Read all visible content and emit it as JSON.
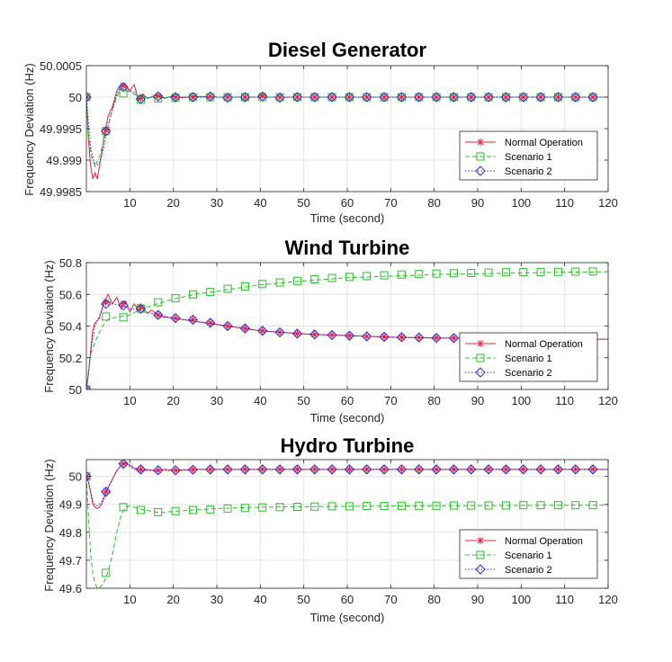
{
  "figure": {
    "background": "#ffffff"
  },
  "colors": {
    "normal": "#e8213a",
    "scenario1": "#22c422",
    "scenario2": "#2a2ae0",
    "grid": "#e3e3e3",
    "axis": "#262626"
  },
  "chart_data": [
    {
      "type": "line",
      "title": "Diesel Generator",
      "xlabel": "Time (second)",
      "ylabel": "Frequency Deviation (Hz)",
      "xlim": [
        0,
        120
      ],
      "ylim": [
        49.9985,
        50.0005
      ],
      "xticks": [
        10,
        20,
        30,
        40,
        50,
        60,
        70,
        80,
        90,
        100,
        110,
        120
      ],
      "xtick_labels": [
        "10",
        "20",
        "30",
        "40",
        "50",
        "60",
        "70",
        "80",
        "90",
        "100",
        "110",
        "120"
      ],
      "yticks": [
        49.9985,
        49.999,
        49.9995,
        50,
        50.0005
      ],
      "ytick_labels": [
        "49.9985",
        "49.999",
        "49.9995",
        "50",
        "50.0005"
      ],
      "grid": true,
      "legend_position": "bottom-right",
      "series": [
        {
          "name": "Normal Operation",
          "x": [
            0,
            0.5,
            1,
            1.5,
            2,
            2.5,
            3,
            3.5,
            4,
            5,
            6,
            7,
            8,
            9,
            10,
            11,
            12,
            13,
            14,
            16,
            18,
            20,
            22,
            25,
            30,
            40,
            120
          ],
          "y": [
            50,
            49.9993,
            49.9989,
            49.9987,
            49.9988,
            49.9987,
            49.9989,
            49.9991,
            49.99935,
            49.9997,
            49.99985,
            50.0001,
            50.0002,
            50.00018,
            50.0001,
            50.0002,
            49.99995,
            50.00005,
            49.99998,
            50.00003,
            49.99998,
            50.00002,
            49.99999,
            50.00001,
            50.0,
            50.0,
            50.0
          ]
        },
        {
          "name": "Scenario 1",
          "x": [
            0,
            0.5,
            1,
            2,
            3,
            4,
            5,
            6,
            7,
            8,
            9,
            10,
            12,
            14,
            20,
            30,
            40,
            120
          ],
          "y": [
            50,
            49.9994,
            49.9991,
            49.9989,
            49.99905,
            49.9993,
            49.99955,
            49.9998,
            50.0,
            50.00015,
            50.0001,
            50.00008,
            50.00002,
            49.99999,
            50.0,
            50.0,
            50.0,
            50.0
          ]
        },
        {
          "name": "Scenario 2",
          "x": [
            0,
            1,
            2,
            3,
            4,
            5,
            6,
            7,
            8,
            9,
            10,
            11,
            12,
            13,
            14,
            16,
            18,
            20,
            22,
            25,
            30,
            40,
            120
          ],
          "y": [
            50,
            49.9992,
            49.9989,
            49.99895,
            49.9992,
            49.99955,
            49.9998,
            50.00005,
            50.00018,
            50.00015,
            50.0001,
            50.00008,
            49.99996,
            50.00004,
            49.99998,
            50.00002,
            49.99999,
            50.00001,
            50.0,
            50.0,
            50.0,
            50.0,
            50.0
          ]
        }
      ],
      "markers": {
        "x": [
          0,
          4.5,
          8.5,
          12.5,
          16.5,
          20.5,
          24.5,
          28.5,
          32.5,
          36.5,
          40.5,
          44.5,
          48.5,
          52.5,
          56.5,
          60.5,
          64.5,
          68.5,
          72.5,
          76.5,
          80.5,
          84.5,
          88.5,
          92.5,
          96.5,
          100.5,
          104.5,
          108.5,
          112.5,
          116.5
        ],
        "normal": [
          50,
          49.99948,
          50.00018,
          49.99998,
          50.00002,
          50.0,
          50.0,
          50.00001,
          50.0,
          50.0,
          50.00002,
          50.0,
          50.0,
          50.0,
          50.0,
          50.0,
          50.0,
          50.0,
          50.0,
          50.0,
          50.0,
          50.0,
          50.0,
          50.0,
          50.0,
          50.0,
          50.0,
          50.0,
          50.0,
          50.0
        ],
        "scenario1": [
          50,
          49.99946,
          50.00006,
          49.99996,
          49.99998,
          49.99999,
          50.0,
          50.0,
          50.0,
          50.0,
          50.0,
          50.0,
          50.0,
          50.0,
          50.0,
          50.0,
          50.0,
          50.0,
          50.0,
          50.0,
          50.0,
          50.0,
          50.0,
          50.0,
          50.0,
          50.0,
          50.0,
          50.0,
          50.0,
          50.0
        ],
        "scenario2": [
          50,
          49.99946,
          50.00016,
          49.99997,
          50.00001,
          50.0,
          50.0,
          50.00001,
          49.99999,
          50.0,
          50.00001,
          49.99999,
          50.0,
          50.0,
          50.0,
          50.0,
          50.0,
          50.0,
          50.0,
          50.0,
          50.0,
          50.0,
          50.0,
          50.0,
          50.0,
          50.0,
          50.0,
          50.0,
          50.0,
          50.0
        ]
      }
    },
    {
      "type": "line",
      "title": "Wind Turbine",
      "xlabel": "Time (second)",
      "ylabel": "Frequency Deviation (Hz)",
      "xlim": [
        0,
        120
      ],
      "ylim": [
        50,
        50.8
      ],
      "xticks": [
        10,
        20,
        30,
        40,
        50,
        60,
        70,
        80,
        90,
        100,
        110,
        120
      ],
      "xtick_labels": [
        "10",
        "20",
        "30",
        "40",
        "50",
        "60",
        "70",
        "80",
        "90",
        "100",
        "110",
        "120"
      ],
      "yticks": [
        50,
        50.2,
        50.4,
        50.6,
        50.8
      ],
      "ytick_labels": [
        "50",
        "50.2",
        "50.4",
        "50.6",
        "50.8"
      ],
      "grid": true,
      "legend_position": "bottom-right",
      "series": [
        {
          "name": "Normal Operation",
          "x": [
            0,
            0.5,
            1,
            1.5,
            2,
            3,
            4,
            5,
            6,
            7,
            8,
            9,
            10,
            11,
            12,
            13,
            14,
            15,
            17,
            20,
            25,
            30,
            35,
            40,
            45,
            50,
            55,
            60,
            65,
            70,
            80,
            90,
            100,
            110,
            120
          ],
          "y": [
            50,
            50.1,
            50.25,
            50.38,
            50.42,
            50.45,
            50.55,
            50.6,
            50.54,
            50.58,
            50.51,
            50.56,
            50.49,
            50.54,
            50.5,
            50.52,
            50.48,
            50.5,
            50.46,
            50.45,
            50.43,
            50.41,
            50.39,
            50.37,
            50.36,
            50.35,
            50.345,
            50.34,
            50.335,
            50.33,
            50.325,
            50.322,
            50.32,
            50.318,
            50.317
          ]
        },
        {
          "name": "Scenario 1",
          "x": [
            0,
            0.5,
            1,
            2,
            3,
            4,
            5,
            6,
            8,
            10,
            12,
            15,
            20,
            25,
            30,
            40,
            50,
            60,
            70,
            80,
            90,
            100,
            110,
            120
          ],
          "y": [
            50,
            50.12,
            50.22,
            50.3,
            50.36,
            50.41,
            50.44,
            50.45,
            50.46,
            50.47,
            50.5,
            50.53,
            50.57,
            50.6,
            50.62,
            50.66,
            50.685,
            50.705,
            50.715,
            50.725,
            50.73,
            50.735,
            50.74,
            50.742
          ]
        },
        {
          "name": "Scenario 2",
          "x": [
            0,
            0.5,
            1,
            2,
            3,
            4,
            5,
            6,
            8,
            10,
            12,
            15,
            20,
            25,
            30,
            40,
            50,
            60,
            70,
            80,
            90,
            100,
            110,
            120
          ],
          "y": [
            50,
            50.11,
            50.24,
            50.4,
            50.46,
            50.53,
            50.56,
            50.54,
            50.53,
            50.51,
            50.5,
            50.48,
            50.45,
            50.43,
            50.41,
            50.37,
            50.35,
            50.34,
            50.33,
            50.325,
            50.322,
            50.32,
            50.318,
            50.317
          ]
        }
      ],
      "markers": {
        "x": [
          0,
          4.5,
          8.5,
          12.5,
          16.5,
          20.5,
          24.5,
          28.5,
          32.5,
          36.5,
          40.5,
          44.5,
          48.5,
          52.5,
          56.5,
          60.5,
          64.5,
          68.5,
          72.5,
          76.5,
          80.5,
          84.5,
          88.5,
          92.5,
          96.5,
          100.5,
          104.5,
          108.5,
          112.5,
          116.5
        ],
        "normal": [
          50,
          50.55,
          50.54,
          50.52,
          50.47,
          50.45,
          50.44,
          50.42,
          50.4,
          50.385,
          50.37,
          50.36,
          50.352,
          50.347,
          50.343,
          50.339,
          50.335,
          50.332,
          50.33,
          50.328,
          50.325,
          50.324,
          50.322,
          50.321,
          50.32,
          50.319,
          50.318,
          50.318,
          50.317,
          50.317
        ],
        "scenario1": [
          50,
          50.46,
          50.455,
          50.51,
          50.55,
          50.575,
          50.6,
          50.615,
          50.635,
          50.65,
          50.665,
          50.675,
          50.685,
          50.695,
          50.703,
          50.71,
          50.715,
          50.72,
          50.725,
          50.728,
          50.731,
          50.733,
          50.735,
          50.737,
          50.739,
          50.74,
          50.741,
          50.742,
          50.743,
          50.744
        ],
        "scenario2": [
          50,
          50.54,
          50.53,
          50.51,
          50.47,
          50.45,
          50.44,
          50.42,
          50.4,
          50.385,
          50.37,
          50.36,
          50.352,
          50.347,
          50.343,
          50.339,
          50.335,
          50.332,
          50.33,
          50.328,
          50.325,
          50.324,
          50.322,
          50.321,
          50.32,
          50.319,
          50.318,
          50.318,
          50.317,
          50.317
        ]
      }
    },
    {
      "type": "line",
      "title": "Hydro Turbine",
      "xlabel": "Time (second)",
      "ylabel": "Frequency Deviation (Hz)",
      "xlim": [
        0,
        120
      ],
      "ylim": [
        49.6,
        50.06
      ],
      "xticks": [
        10,
        20,
        30,
        40,
        50,
        60,
        70,
        80,
        90,
        100,
        110,
        120
      ],
      "xtick_labels": [
        "10",
        "20",
        "30",
        "40",
        "50",
        "60",
        "70",
        "80",
        "90",
        "100",
        "110",
        "120"
      ],
      "yticks": [
        49.6,
        49.7,
        49.8,
        49.9,
        50
      ],
      "ytick_labels": [
        "49.6",
        "49.7",
        "49.8",
        "49.9",
        "50"
      ],
      "grid": true,
      "legend_position": "bottom-right",
      "series": [
        {
          "name": "Normal Operation",
          "x": [
            0,
            0.5,
            1,
            1.5,
            2,
            2.5,
            3,
            3.5,
            4,
            4.5,
            5,
            6,
            7,
            8,
            9,
            10,
            11,
            12,
            13,
            14,
            16,
            18,
            20,
            25,
            30,
            40,
            60,
            120
          ],
          "y": [
            50,
            49.98,
            49.94,
            49.9,
            49.89,
            49.885,
            49.89,
            49.9,
            49.92,
            49.94,
            49.96,
            49.99,
            50.02,
            50.04,
            50.05,
            50.04,
            50.03,
            50.025,
            50.02,
            50.025,
            50.02,
            50.025,
            50.022,
            50.025,
            50.025,
            50.025,
            50.025,
            50.025
          ]
        },
        {
          "name": "Scenario 1",
          "x": [
            0,
            0.5,
            1,
            1.5,
            2,
            2.5,
            3,
            3.5,
            4,
            4.5,
            5,
            6,
            7,
            8,
            9,
            10,
            12,
            15,
            17,
            20,
            25,
            30,
            40,
            60,
            80,
            120
          ],
          "y": [
            50,
            49.85,
            49.72,
            49.65,
            49.62,
            49.6,
            49.6,
            49.61,
            49.62,
            49.64,
            49.66,
            49.72,
            49.8,
            49.86,
            49.89,
            49.895,
            49.885,
            49.875,
            49.87,
            49.875,
            49.88,
            49.885,
            49.89,
            49.893,
            49.895,
            49.897
          ]
        },
        {
          "name": "Scenario 2",
          "x": [
            0,
            0.5,
            1,
            1.5,
            2,
            2.5,
            3,
            3.5,
            4,
            4.5,
            5,
            6,
            7,
            8,
            9,
            10,
            11,
            12,
            13,
            14,
            16,
            18,
            20,
            25,
            30,
            40,
            60,
            120
          ],
          "y": [
            50,
            49.98,
            49.945,
            49.91,
            49.9,
            49.895,
            49.9,
            49.91,
            49.925,
            49.945,
            49.96,
            49.99,
            50.02,
            50.04,
            50.045,
            50.035,
            50.025,
            50.02,
            50.018,
            50.022,
            50.02,
            50.022,
            50.02,
            50.025,
            50.025,
            50.025,
            50.025,
            50.025
          ]
        }
      ],
      "markers": {
        "x": [
          0,
          4.5,
          8.5,
          12.5,
          16.5,
          20.5,
          24.5,
          28.5,
          32.5,
          36.5,
          40.5,
          44.5,
          48.5,
          52.5,
          56.5,
          60.5,
          64.5,
          68.5,
          72.5,
          76.5,
          80.5,
          84.5,
          88.5,
          92.5,
          96.5,
          100.5,
          104.5,
          108.5,
          112.5,
          116.5
        ],
        "normal": [
          50,
          49.945,
          50.045,
          50.025,
          50.022,
          50.022,
          50.024,
          50.025,
          50.025,
          50.025,
          50.025,
          50.025,
          50.025,
          50.025,
          50.025,
          50.025,
          50.025,
          50.025,
          50.025,
          50.025,
          50.025,
          50.025,
          50.025,
          50.025,
          50.025,
          50.025,
          50.025,
          50.025,
          50.025,
          50.025
        ],
        "scenario1": [
          50,
          49.655,
          49.89,
          49.88,
          49.872,
          49.876,
          49.88,
          49.882,
          49.885,
          49.887,
          49.889,
          49.89,
          49.891,
          49.892,
          49.893,
          49.893,
          49.894,
          49.894,
          49.895,
          49.895,
          49.895,
          49.896,
          49.896,
          49.896,
          49.896,
          49.897,
          49.897,
          49.897,
          49.897,
          49.897
        ],
        "scenario2": [
          50,
          49.945,
          50.045,
          50.025,
          50.022,
          50.022,
          50.024,
          50.025,
          50.025,
          50.025,
          50.025,
          50.025,
          50.025,
          50.025,
          50.025,
          50.025,
          50.025,
          50.025,
          50.025,
          50.025,
          50.025,
          50.025,
          50.025,
          50.025,
          50.025,
          50.025,
          50.025,
          50.025,
          50.025,
          50.025
        ]
      }
    }
  ]
}
